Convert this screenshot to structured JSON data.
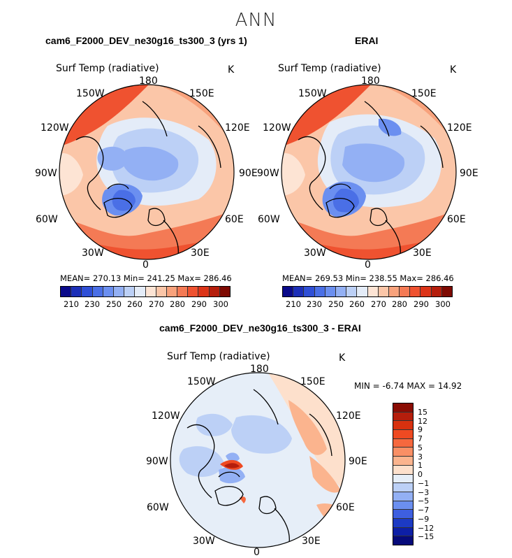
{
  "title": "ANN",
  "panels": [
    {
      "title": "cam6_F2000_DEV_ne30g16_ts300_3 (yrs 1)",
      "variable": "Surf Temp (radiative)",
      "units": "K",
      "stats": "MEAN= 270.13   Min= 241.25   Max= 286.46",
      "lon_labels": [
        "180",
        "150E",
        "120E",
        "90E",
        "60E",
        "30E",
        "0",
        "30W",
        "60W",
        "90W",
        "120W",
        "150W"
      ]
    },
    {
      "title": "ERAI",
      "variable": "Surf Temp (radiative)",
      "units": "K",
      "stats": "MEAN= 269.53   Min= 238.55   Max= 286.46",
      "lon_labels": [
        "180",
        "150E",
        "120E",
        "90E",
        "60E",
        "30E",
        "0",
        "30W",
        "60W",
        "90W",
        "120W",
        "150W"
      ]
    },
    {
      "title": "cam6_F2000_DEV_ne30g16_ts300_3 - ERAI",
      "variable": "Surf Temp (radiative)",
      "units": "K",
      "stats": "MIN =   -6.74 MAX =   14.92",
      "lon_labels": [
        "180",
        "150E",
        "120E",
        "90E",
        "60E",
        "30E",
        "0",
        "30W",
        "60W",
        "90W",
        "120W",
        "150W"
      ]
    }
  ],
  "colorbar_abs": {
    "labels": [
      "210",
      "230",
      "250",
      "260",
      "270",
      "280",
      "290",
      "300"
    ],
    "colors": [
      "#0a0a8a",
      "#1c2fb8",
      "#2f4fd6",
      "#4a6fe6",
      "#6b8ff0",
      "#93b0f4",
      "#bcd0f6",
      "#e4ecf8",
      "#fde4d4",
      "#fbc6a8",
      "#f8a27c",
      "#f47a55",
      "#ef5230",
      "#dc3418",
      "#b51e0c",
      "#7e0a02"
    ]
  },
  "colorbar_diff": {
    "labels": [
      "15",
      "12",
      "9",
      "7",
      "5",
      "3",
      "1",
      "0",
      "−1",
      "−3",
      "−5",
      "−7",
      "−9",
      "−12",
      "−15"
    ],
    "colors": [
      "#8a0c04",
      "#b51e0c",
      "#d8310f",
      "#ee4a22",
      "#f6683e",
      "#f98f65",
      "#fbb48e",
      "#fde0cc",
      "#e6eef8",
      "#bcd0f6",
      "#93b0f4",
      "#6b8ff0",
      "#3e5fe0",
      "#1c3ac4",
      "#0d1fa6",
      "#060a7a"
    ]
  }
}
